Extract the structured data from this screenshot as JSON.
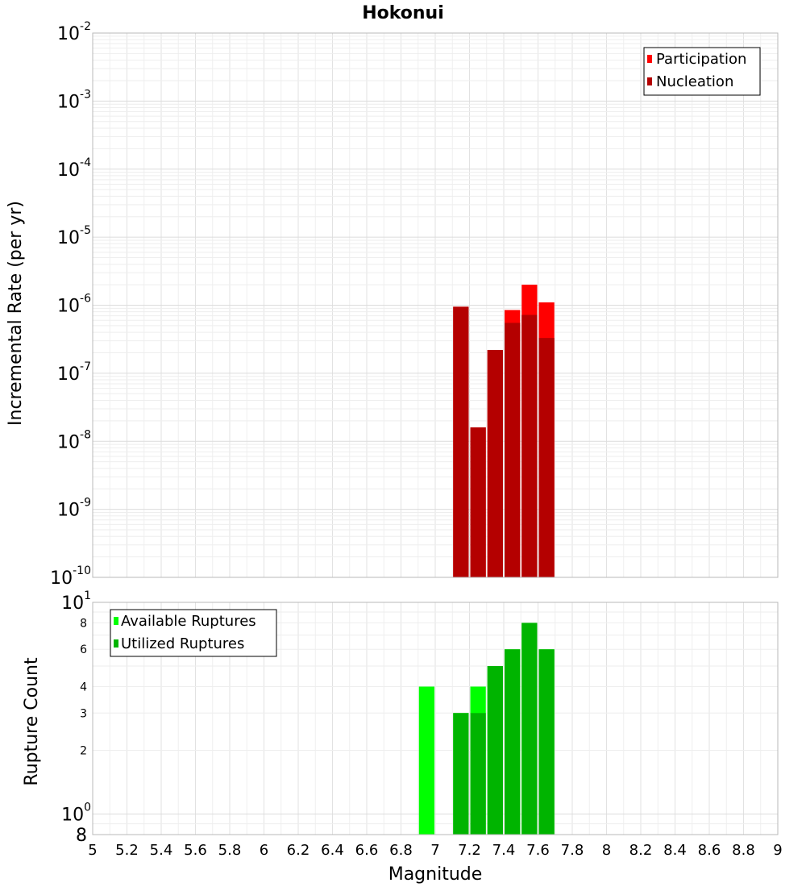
{
  "chart_data": [
    {
      "id": "rate",
      "type": "bar",
      "title": "Hokonui",
      "xlabel": "",
      "ylabel": "Incremental Rate (per yr)",
      "yscale": "log",
      "xlim": [
        5,
        9
      ],
      "ylim": [
        1e-10,
        0.01
      ],
      "grid": true,
      "bar_width": 0.1,
      "y_ticks": [
        {
          "base": "10",
          "exp": "-10"
        },
        {
          "base": "10",
          "exp": "-9"
        },
        {
          "base": "10",
          "exp": "-8"
        },
        {
          "base": "10",
          "exp": "-7"
        },
        {
          "base": "10",
          "exp": "-6"
        },
        {
          "base": "10",
          "exp": "-5"
        },
        {
          "base": "10",
          "exp": "-4"
        },
        {
          "base": "10",
          "exp": "-3"
        },
        {
          "base": "10",
          "exp": "-2"
        }
      ],
      "legend": {
        "position": "top-right",
        "entries": [
          {
            "label": "Participation",
            "color": "#ff0000"
          },
          {
            "label": "Nucleation",
            "color": "#b40000"
          }
        ]
      },
      "series": [
        {
          "name": "Participation",
          "color": "#ff0000",
          "x": [
            7.15,
            7.25,
            7.35,
            7.45,
            7.55,
            7.65
          ],
          "values": [
            9.5e-07,
            1.6e-08,
            2.2e-07,
            8.5e-07,
            2e-06,
            1.1e-06
          ]
        },
        {
          "name": "Nucleation",
          "color": "#b40000",
          "x": [
            7.15,
            7.25,
            7.35,
            7.45,
            7.55,
            7.65
          ],
          "values": [
            9.5e-07,
            1.6e-08,
            2.2e-07,
            5.5e-07,
            7.2e-07,
            3.3e-07
          ]
        }
      ]
    },
    {
      "id": "count",
      "type": "bar",
      "title": "",
      "xlabel": "Magnitude",
      "ylabel": "Rupture Count",
      "yscale": "log",
      "xlim": [
        5,
        9
      ],
      "ylim": [
        0.8,
        10
      ],
      "grid": true,
      "bar_width": 0.1,
      "x_ticks": [
        "5",
        "5.2",
        "5.4",
        "5.6",
        "5.8",
        "6",
        "6.2",
        "6.4",
        "6.6",
        "6.8",
        "7",
        "7.2",
        "7.4",
        "7.6",
        "7.8",
        "8",
        "8.2",
        "8.4",
        "8.6",
        "8.8",
        "9"
      ],
      "y_major_ticks": [
        {
          "base": "10",
          "exp": "0",
          "value": 1
        },
        {
          "base": "10",
          "exp": "1",
          "value": 10
        }
      ],
      "y_minor_ticks": [
        {
          "label": "8",
          "value": 0.8
        },
        {
          "label": "2",
          "value": 2
        },
        {
          "label": "3",
          "value": 3
        },
        {
          "label": "4",
          "value": 4
        },
        {
          "label": "6",
          "value": 6
        },
        {
          "label": "8",
          "value": 8
        }
      ],
      "legend": {
        "position": "top-left",
        "entries": [
          {
            "label": "Available Ruptures",
            "color": "#00ff00"
          },
          {
            "label": "Utilized Ruptures",
            "color": "#00b400"
          }
        ]
      },
      "series": [
        {
          "name": "Available Ruptures",
          "color": "#00ff00",
          "x": [
            6.95,
            7.15,
            7.25,
            7.35,
            7.45,
            7.55,
            7.65
          ],
          "values": [
            4,
            3,
            4,
            5,
            6,
            8,
            6
          ]
        },
        {
          "name": "Utilized Ruptures",
          "color": "#00b400",
          "x": [
            7.15,
            7.25,
            7.35,
            7.45,
            7.55,
            7.65
          ],
          "values": [
            3,
            3,
            5,
            6,
            8,
            6
          ]
        }
      ]
    }
  ]
}
